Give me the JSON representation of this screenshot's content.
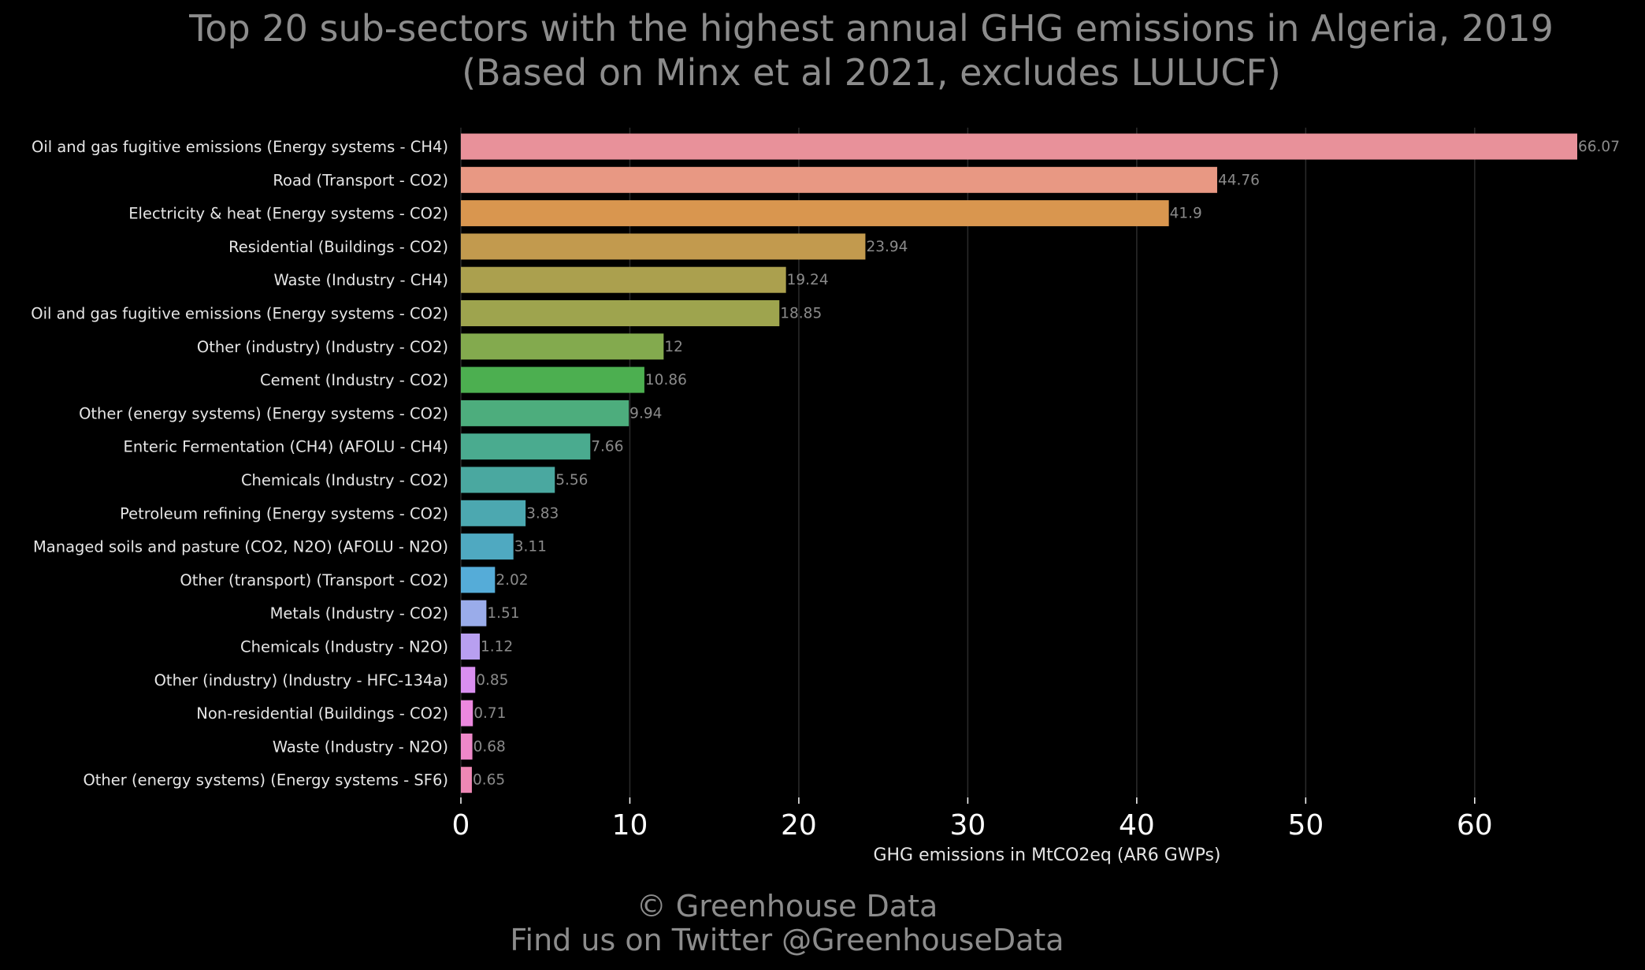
{
  "chart_data": {
    "type": "bar",
    "orientation": "horizontal",
    "title": "Top 20 sub-sectors with the highest annual GHG emissions in Algeria, 2019",
    "subtitle": "(Based on Minx et al 2021, excludes LULUCF)",
    "xlabel": "GHG emissions in MtCO2eq (AR6 GWPs)",
    "ylabel": "",
    "xlim": [
      0,
      66.07
    ],
    "xticks": [
      0,
      10,
      20,
      30,
      40,
      50,
      60
    ],
    "grid": true,
    "categories": [
      "Oil and gas fugitive emissions (Energy systems - CH4)",
      "Road (Transport - CO2)",
      "Electricity & heat (Energy systems - CO2)",
      "Residential (Buildings - CO2)",
      "Waste (Industry - CH4)",
      "Oil and gas fugitive emissions (Energy systems - CO2)",
      "Other (industry) (Industry - CO2)",
      "Cement (Industry - CO2)",
      "Other (energy systems) (Energy systems - CO2)",
      "Enteric Fermentation (CH4) (AFOLU - CH4)",
      "Chemicals (Industry - CO2)",
      "Petroleum refining (Energy systems - CO2)",
      "Managed soils and pasture (CO2, N2O) (AFOLU - N2O)",
      "Other (transport) (Transport - CO2)",
      "Metals (Industry - CO2)",
      "Chemicals (Industry - N2O)",
      "Other (industry) (Industry - HFC-134a)",
      "Non-residential (Buildings - CO2)",
      "Waste (Industry - N2O)",
      "Other (energy systems) (Energy systems - SF6)"
    ],
    "values": [
      66.07,
      44.76,
      41.9,
      23.94,
      19.24,
      18.85,
      12,
      10.86,
      9.94,
      7.66,
      5.56,
      3.83,
      3.11,
      2.02,
      1.51,
      1.12,
      0.85,
      0.71,
      0.68,
      0.65
    ],
    "value_labels": [
      "66.07",
      "44.76",
      "41.9",
      "23.94",
      "19.24",
      "18.85",
      "12",
      "10.86",
      "9.94",
      "7.66",
      "5.56",
      "3.83",
      "3.11",
      "2.02",
      "1.51",
      "1.12",
      "0.85",
      "0.71",
      "0.68",
      "0.65"
    ],
    "colors": [
      "#e8919a",
      "#e89883",
      "#d9964f",
      "#c29a4e",
      "#aba04e",
      "#9ea44e",
      "#83aa4e",
      "#4caf50",
      "#4dad7d",
      "#4aab8f",
      "#4aa8a0",
      "#4ca8b0",
      "#4fa9c1",
      "#55acd8",
      "#9aacea",
      "#b89ff0",
      "#d98ff0",
      "#ec88df",
      "#ee88c9",
      "#ee88b5"
    ]
  },
  "footer": {
    "line1": "© Greenhouse Data",
    "line2": "Find us on Twitter @GreenhouseData"
  }
}
